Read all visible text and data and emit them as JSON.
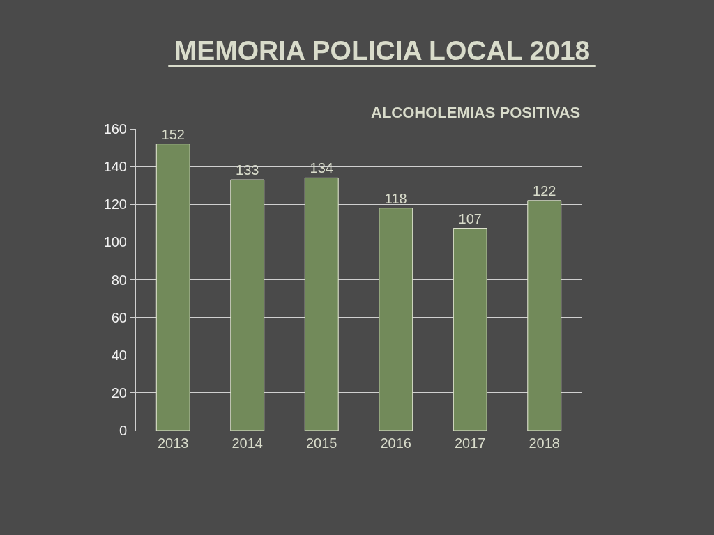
{
  "chart_data": {
    "type": "bar",
    "title": "MEMORIA POLICIA LOCAL 2018",
    "subtitle": "ALCOHOLEMIAS POSITIVAS",
    "categories": [
      "2013",
      "2014",
      "2015",
      "2016",
      "2017",
      "2018"
    ],
    "values": [
      152,
      133,
      134,
      118,
      107,
      122
    ],
    "color": "#728a5a",
    "ylim": [
      0,
      160
    ],
    "yticks": [
      0,
      20,
      40,
      60,
      80,
      100,
      120,
      140,
      160
    ],
    "grid": "y",
    "data_labels": true,
    "legend": false
  }
}
